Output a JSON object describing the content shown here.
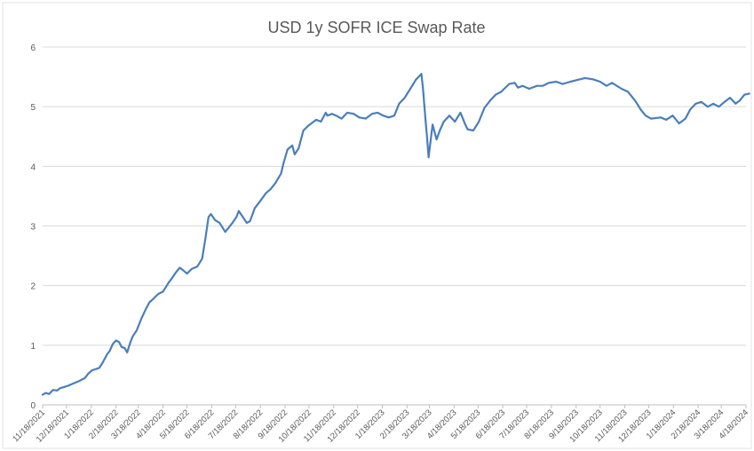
{
  "chart_data": {
    "type": "line",
    "title": "USD 1y SOFR ICE Swap Rate",
    "xlabel": "",
    "ylabel": "",
    "ylim": [
      0,
      6
    ],
    "yticks": [
      0,
      1,
      2,
      3,
      4,
      5,
      6
    ],
    "grid": "horizontal",
    "legend": "none",
    "series_color": "#4A7EBB",
    "xtick_labels": [
      "11/18/2021",
      "12/18/2021",
      "1/18/2022",
      "2/18/2022",
      "3/18/2022",
      "4/18/2022",
      "5/18/2022",
      "6/18/2022",
      "7/18/2022",
      "8/18/2022",
      "9/18/2022",
      "10/18/2022",
      "11/18/2022",
      "12/18/2022",
      "1/18/2023",
      "2/18/2023",
      "3/18/2023",
      "4/18/2023",
      "5/18/2023",
      "6/18/2023",
      "7/18/2023",
      "8/18/2023",
      "9/18/2023",
      "10/18/2023",
      "11/18/2023",
      "12/18/2023",
      "1/18/2024",
      "2/18/2024",
      "3/18/2024",
      "4/18/2024"
    ],
    "series": [
      {
        "x": [
          "2021-11-18",
          "2021-11-22",
          "2021-11-26",
          "2021-12-01",
          "2021-12-06",
          "2021-12-10",
          "2021-12-15",
          "2021-12-20",
          "2021-12-27",
          "2022-01-03",
          "2022-01-10",
          "2022-01-14",
          "2022-01-19",
          "2022-01-24",
          "2022-01-28",
          "2022-02-01",
          "2022-02-07",
          "2022-02-10",
          "2022-02-14",
          "2022-02-18",
          "2022-02-22",
          "2022-02-25",
          "2022-03-01",
          "2022-03-04",
          "2022-03-08",
          "2022-03-11",
          "2022-03-16",
          "2022-03-22",
          "2022-03-28",
          "2022-04-01",
          "2022-04-06",
          "2022-04-12",
          "2022-04-18",
          "2022-04-25",
          "2022-04-29",
          "2022-05-04",
          "2022-05-09",
          "2022-05-13",
          "2022-05-18",
          "2022-05-24",
          "2022-05-31",
          "2022-06-06",
          "2022-06-10",
          "2022-06-14",
          "2022-06-17",
          "2022-06-22",
          "2022-06-28",
          "2022-07-05",
          "2022-07-08",
          "2022-07-14",
          "2022-07-19",
          "2022-07-22",
          "2022-07-27",
          "2022-08-01",
          "2022-08-05",
          "2022-08-11",
          "2022-08-18",
          "2022-08-25",
          "2022-08-31",
          "2022-09-06",
          "2022-09-13",
          "2022-09-16",
          "2022-09-21",
          "2022-09-27",
          "2022-09-30",
          "2022-10-05",
          "2022-10-11",
          "2022-10-17",
          "2022-10-21",
          "2022-10-27",
          "2022-11-02",
          "2022-11-08",
          "2022-11-10",
          "2022-11-16",
          "2022-11-21",
          "2022-11-28",
          "2022-12-05",
          "2022-12-13",
          "2022-12-20",
          "2022-12-28",
          "2023-01-05",
          "2023-01-12",
          "2023-01-19",
          "2023-01-26",
          "2023-02-02",
          "2023-02-08",
          "2023-02-15",
          "2023-02-22",
          "2023-03-01",
          "2023-03-08",
          "2023-03-10",
          "2023-03-13",
          "2023-03-15",
          "2023-03-17",
          "2023-03-22",
          "2023-03-27",
          "2023-03-31",
          "2023-04-05",
          "2023-04-12",
          "2023-04-19",
          "2023-04-26",
          "2023-05-02",
          "2023-05-05",
          "2023-05-12",
          "2023-05-19",
          "2023-05-26",
          "2023-06-02",
          "2023-06-09",
          "2023-06-16",
          "2023-06-26",
          "2023-07-03",
          "2023-07-07",
          "2023-07-13",
          "2023-07-21",
          "2023-07-31",
          "2023-08-07",
          "2023-08-15",
          "2023-08-24",
          "2023-09-01",
          "2023-09-11",
          "2023-09-20",
          "2023-09-29",
          "2023-10-09",
          "2023-10-18",
          "2023-10-26",
          "2023-11-02",
          "2023-11-14",
          "2023-11-22",
          "2023-12-01",
          "2023-12-08",
          "2023-12-14",
          "2023-12-21",
          "2024-01-02",
          "2024-01-09",
          "2024-01-17",
          "2024-01-25",
          "2024-02-02",
          "2024-02-08",
          "2024-02-15",
          "2024-02-22",
          "2024-03-01",
          "2024-03-08",
          "2024-03-15",
          "2024-03-22",
          "2024-03-29",
          "2024-04-05",
          "2024-04-10",
          "2024-04-16",
          "2024-04-22"
        ],
        "y": [
          0.17,
          0.2,
          0.18,
          0.25,
          0.24,
          0.28,
          0.3,
          0.32,
          0.36,
          0.4,
          0.45,
          0.52,
          0.58,
          0.6,
          0.62,
          0.7,
          0.85,
          0.9,
          1.02,
          1.08,
          1.05,
          0.97,
          0.95,
          0.88,
          1.05,
          1.15,
          1.25,
          1.45,
          1.62,
          1.72,
          1.78,
          1.86,
          1.9,
          2.05,
          2.12,
          2.22,
          2.3,
          2.26,
          2.2,
          2.28,
          2.32,
          2.45,
          2.78,
          3.15,
          3.2,
          3.1,
          3.05,
          2.9,
          2.95,
          3.05,
          3.15,
          3.25,
          3.15,
          3.05,
          3.08,
          3.3,
          3.42,
          3.55,
          3.62,
          3.72,
          3.88,
          4.05,
          4.28,
          4.35,
          4.2,
          4.3,
          4.6,
          4.68,
          4.72,
          4.78,
          4.75,
          4.9,
          4.85,
          4.88,
          4.85,
          4.8,
          4.9,
          4.88,
          4.82,
          4.8,
          4.88,
          4.9,
          4.85,
          4.82,
          4.85,
          5.05,
          5.15,
          5.3,
          5.45,
          5.55,
          5.3,
          4.8,
          4.5,
          4.15,
          4.7,
          4.45,
          4.6,
          4.75,
          4.85,
          4.75,
          4.9,
          4.7,
          4.62,
          4.6,
          4.75,
          4.98,
          5.1,
          5.2,
          5.25,
          5.38,
          5.4,
          5.32,
          5.35,
          5.3,
          5.35,
          5.35,
          5.4,
          5.42,
          5.38,
          5.42,
          5.45,
          5.48,
          5.46,
          5.42,
          5.35,
          5.4,
          5.3,
          5.25,
          5.1,
          4.95,
          4.85,
          4.8,
          4.82,
          4.78,
          4.85,
          4.72,
          4.8,
          4.95,
          5.05,
          5.08,
          5.0,
          5.05,
          5.0,
          5.08,
          5.15,
          5.05,
          5.1,
          5.2,
          5.22
        ]
      }
    ]
  }
}
